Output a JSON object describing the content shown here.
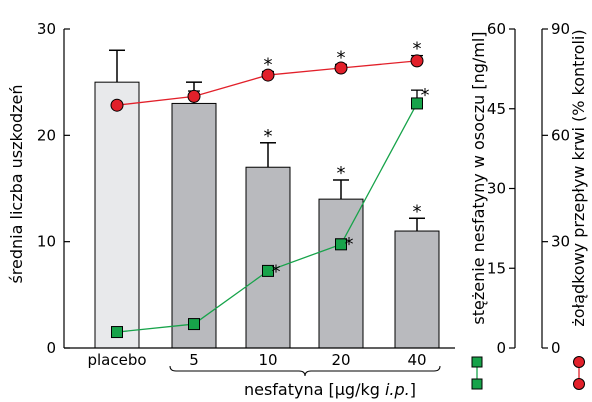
{
  "chart_data": {
    "type": "bar",
    "categories": [
      "placebo",
      "5",
      "10",
      "20",
      "40"
    ],
    "xlabel": "nesfatyna [µg/kg ",
    "xlabel_italic": "i.p.",
    "xlabel_end": "]",
    "ylabel_left": "średnia liczba uszkodzeń",
    "ylabel_right1": "stężenie nesfatyny w osoczu [ng/ml]",
    "ylabel_right2": "żołądkowy przepływ krwi (% kontroli)",
    "ylim_left": [
      0,
      30
    ],
    "ylim_right1": [
      0,
      60
    ],
    "ylim_right2": [
      0,
      90
    ],
    "yticks_left": [
      "0",
      "10",
      "20",
      "30"
    ],
    "yticks_right1": [
      "0",
      "15",
      "30",
      "45",
      "60"
    ],
    "yticks_right2": [
      "0",
      "30",
      "60",
      "90"
    ],
    "bars": {
      "values": [
        25,
        23,
        17,
        14,
        11
      ],
      "errors": [
        3,
        2,
        2.3,
        1.8,
        1.2
      ],
      "significant": [
        false,
        false,
        true,
        true,
        true
      ],
      "colors": [
        "#e8e9eb",
        "#b9babe",
        "#b9babe",
        "#b9babe",
        "#b9babe"
      ]
    },
    "series": [
      {
        "axis": "right1",
        "color": "#17a34a",
        "marker": "square",
        "values": [
          3,
          4.5,
          14.5,
          19.5,
          46
        ],
        "errors": [
          0,
          0.6,
          0.8,
          1.0,
          2.5
        ],
        "significant": [
          false,
          false,
          true,
          true,
          true
        ]
      },
      {
        "axis": "right2",
        "color": "#e2202a",
        "marker": "circle",
        "values": [
          68.5,
          71,
          77,
          79,
          81
        ],
        "errors": [
          0,
          1.5,
          1.0,
          1.0,
          1.5
        ],
        "significant": [
          false,
          false,
          true,
          true,
          true
        ]
      }
    ],
    "significance_mark": "*"
  }
}
